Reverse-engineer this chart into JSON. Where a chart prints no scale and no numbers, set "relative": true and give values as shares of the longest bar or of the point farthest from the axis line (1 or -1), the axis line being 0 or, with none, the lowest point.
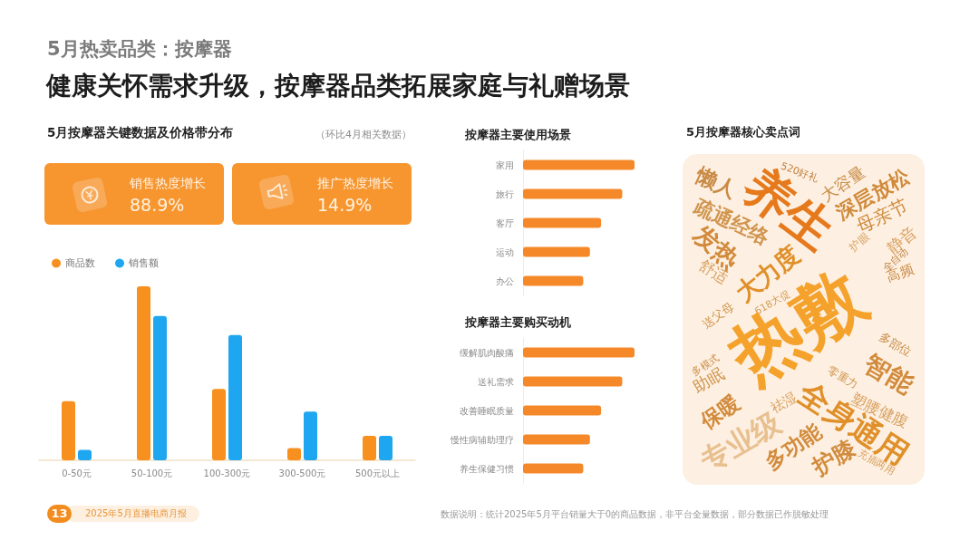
{
  "chart_data": [
    {
      "type": "other",
      "title": "5月热卖品类：按摩器",
      "subtitle": "健康关怀需求升级，按摩器品类拓展家庭与礼赠场景",
      "annotations": [
        "13",
        "2025年5月直播电商月报",
        "数据说明：统计2025年5月平台销量大于0的商品数据，非平台全量数据，部分数据已作脱敏处理"
      ]
    },
    {
      "type": "other",
      "title": "5月按摩器关键数据及价格带分布",
      "subtitle": "（环比4月相关数据）",
      "annotations": [
        "销售热度增长",
        "88.9%",
        "推广热度增长",
        "14.9%"
      ]
    },
    {
      "type": "bar",
      "categories": [
        "0-50元",
        "50-100元",
        "100-300元",
        "300-500元",
        "500元以上"
      ],
      "series": [
        {
          "name": "商品数",
          "color": "#f7901e",
          "values": [
            0.34,
            1,
            0.41,
            0.07,
            0.14
          ]
        },
        {
          "name": "销售额",
          "color": "#1fa6f0",
          "values": [
            0.06,
            0.83,
            0.72,
            0.28,
            0.14
          ]
        }
      ],
      "relative": true,
      "legend": "top left"
    },
    {
      "type": "bar",
      "orientation": "horizontal",
      "title": "按摩器主要使用场景",
      "categories": [
        "家用",
        "旅行",
        "客厅",
        "运动",
        "办公"
      ],
      "values": [
        1,
        0.89,
        0.7,
        0.6,
        0.54
      ],
      "color": "#f5892a",
      "relative": true
    },
    {
      "type": "bar",
      "orientation": "horizontal",
      "title": "按摩器主要购买动机",
      "categories": [
        "缓解肌肉酸痛",
        "送礼需求",
        "改善睡眠质量",
        "慢性病辅助理疗",
        "养生保健习惯"
      ],
      "values": [
        1,
        0.89,
        0.7,
        0.6,
        0.54
      ],
      "color": "#f5892a",
      "relative": true
    },
    {
      "type": "other",
      "title": "5月按摩器核心卖点词",
      "annotations": [
        "懒人",
        "520好礼",
        "养生",
        "大容量",
        "深层放松",
        "疏通经络",
        "母亲节",
        "发热",
        "护眼",
        "静音",
        "全自动",
        "舒适",
        "大力度",
        "高频",
        "618大促",
        "送父母",
        "热敷",
        "多部位",
        "多模式",
        "智能",
        "零重力",
        "助眠",
        "祛湿",
        "保暖",
        "塑腰健腹",
        "全身通用",
        "专业级",
        "多功能",
        "护膝",
        "充插两用"
      ]
    }
  ]
}
